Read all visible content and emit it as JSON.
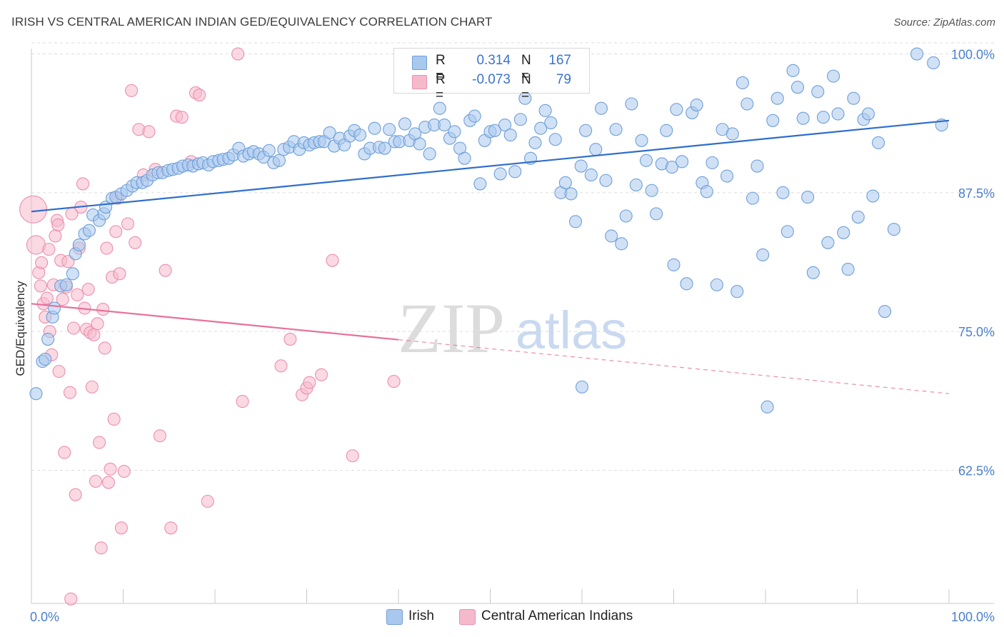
{
  "header": {
    "title": "IRISH VS CENTRAL AMERICAN INDIAN GED/EQUIVALENCY CORRELATION CHART",
    "source": "Source: ZipAtlas.com"
  },
  "watermark": {
    "zip": "ZIP",
    "atlas": "atlas"
  },
  "legend": {
    "rows": [
      {
        "r_label": "R =",
        "r_value": "0.314",
        "n_label": "N =",
        "n_value": "167"
      },
      {
        "r_label": "R =",
        "r_value": "-0.073",
        "n_label": "N =",
        "n_value": "79"
      }
    ]
  },
  "bottom_legend": {
    "irish": "Irish",
    "cai": "Central American Indians"
  },
  "colors": {
    "irish_fill": "#a9c8ee",
    "irish_stroke": "#6f9fd8",
    "irish_line": "#2f6ecb",
    "cai_fill": "#f5b9cc",
    "cai_stroke": "#ec8fae",
    "cai_line": "#e8709a",
    "tick_text": "#4a7fd0",
    "grid": "#dedede"
  },
  "chart_data": {
    "type": "scatter",
    "title": "IRISH VS CENTRAL AMERICAN INDIAN GED/EQUIVALENCY CORRELATION CHART",
    "ylabel": "GED/Equivalency",
    "xlabel": "",
    "xlim": [
      0,
      100
    ],
    "ylim": [
      50.5,
      101
    ],
    "x_tick_labels": [
      "0.0%",
      "100.0%"
    ],
    "y_ticks": [
      62.5,
      75.0,
      87.5,
      100.0
    ],
    "y_tick_labels": [
      "62.5%",
      "75.0%",
      "87.5%",
      "100.0%"
    ],
    "grid": true,
    "series": [
      {
        "name": "Irish",
        "trendline": [
          [
            0,
            85.8
          ],
          [
            100,
            94.0
          ]
        ],
        "trend_solid_to": 100,
        "points": [
          [
            0.5,
            69.4
          ],
          [
            1.2,
            72.3
          ],
          [
            1.5,
            72.5
          ],
          [
            1.8,
            74.3
          ],
          [
            2.3,
            76.3
          ],
          [
            2.5,
            77.1
          ],
          [
            3.2,
            79.1
          ],
          [
            3.8,
            79.2
          ],
          [
            4.5,
            80.2
          ],
          [
            4.8,
            82.0
          ],
          [
            5.2,
            82.8
          ],
          [
            5.8,
            83.8
          ],
          [
            6.3,
            84.1
          ],
          [
            6.7,
            85.5
          ],
          [
            7.4,
            85.0
          ],
          [
            7.9,
            85.6
          ],
          [
            8.1,
            86.2
          ],
          [
            8.8,
            87.0
          ],
          [
            9.2,
            87.1
          ],
          [
            9.8,
            87.4
          ],
          [
            10.4,
            87.7
          ],
          [
            11.0,
            88.1
          ],
          [
            11.5,
            88.4
          ],
          [
            12.1,
            88.4
          ],
          [
            12.6,
            88.6
          ],
          [
            13.2,
            89.1
          ],
          [
            13.8,
            89.3
          ],
          [
            14.3,
            89.3
          ],
          [
            14.9,
            89.5
          ],
          [
            15.4,
            89.6
          ],
          [
            16.0,
            89.7
          ],
          [
            16.5,
            89.9
          ],
          [
            17.1,
            90.0
          ],
          [
            17.6,
            89.9
          ],
          [
            18.2,
            90.1
          ],
          [
            18.7,
            90.2
          ],
          [
            19.3,
            90.0
          ],
          [
            19.8,
            90.3
          ],
          [
            20.4,
            90.4
          ],
          [
            20.9,
            90.5
          ],
          [
            21.5,
            90.6
          ],
          [
            22.0,
            90.9
          ],
          [
            22.6,
            91.5
          ],
          [
            23.1,
            90.8
          ],
          [
            23.7,
            91.0
          ],
          [
            24.2,
            91.2
          ],
          [
            24.8,
            91.0
          ],
          [
            25.3,
            90.7
          ],
          [
            25.9,
            91.3
          ],
          [
            26.4,
            90.2
          ],
          [
            27.0,
            90.4
          ],
          [
            27.5,
            91.4
          ],
          [
            28.1,
            91.6
          ],
          [
            28.6,
            92.1
          ],
          [
            29.2,
            91.4
          ],
          [
            29.7,
            92.0
          ],
          [
            30.3,
            91.8
          ],
          [
            30.8,
            92.0
          ],
          [
            31.4,
            92.1
          ],
          [
            31.9,
            92.1
          ],
          [
            32.5,
            92.9
          ],
          [
            33.0,
            91.7
          ],
          [
            33.6,
            92.4
          ],
          [
            34.1,
            91.8
          ],
          [
            34.7,
            92.6
          ],
          [
            35.2,
            93.1
          ],
          [
            35.8,
            92.7
          ],
          [
            36.3,
            91.0
          ],
          [
            36.9,
            91.5
          ],
          [
            37.4,
            93.3
          ],
          [
            37.9,
            91.6
          ],
          [
            38.5,
            91.5
          ],
          [
            39.0,
            93.2
          ],
          [
            39.6,
            92.1
          ],
          [
            40.1,
            92.1
          ],
          [
            40.7,
            93.7
          ],
          [
            41.2,
            92.2
          ],
          [
            41.8,
            92.8
          ],
          [
            42.3,
            91.9
          ],
          [
            42.9,
            93.4
          ],
          [
            43.4,
            91.0
          ],
          [
            43.9,
            93.6
          ],
          [
            44.5,
            95.1
          ],
          [
            45.0,
            93.6
          ],
          [
            45.6,
            92.4
          ],
          [
            46.1,
            93.0
          ],
          [
            46.7,
            91.5
          ],
          [
            47.2,
            90.6
          ],
          [
            47.8,
            94.0
          ],
          [
            48.3,
            94.4
          ],
          [
            48.9,
            88.3
          ],
          [
            49.4,
            92.2
          ],
          [
            50.0,
            93.0
          ],
          [
            50.5,
            93.1
          ],
          [
            51.1,
            89.2
          ],
          [
            51.6,
            93.6
          ],
          [
            52.2,
            92.7
          ],
          [
            52.7,
            89.4
          ],
          [
            53.3,
            94.1
          ],
          [
            53.8,
            96.0
          ],
          [
            54.4,
            90.6
          ],
          [
            54.9,
            92.0
          ],
          [
            55.5,
            93.3
          ],
          [
            56.0,
            94.9
          ],
          [
            56.6,
            93.8
          ],
          [
            57.1,
            92.3
          ],
          [
            57.7,
            87.5
          ],
          [
            58.2,
            88.4
          ],
          [
            58.8,
            87.4
          ],
          [
            59.3,
            84.9
          ],
          [
            59.9,
            89.9
          ],
          [
            60.4,
            93.1
          ],
          [
            61.0,
            89.1
          ],
          [
            61.5,
            91.4
          ],
          [
            62.1,
            95.1
          ],
          [
            62.6,
            88.6
          ],
          [
            63.2,
            83.6
          ],
          [
            63.7,
            93.2
          ],
          [
            64.3,
            82.9
          ],
          [
            64.8,
            85.4
          ],
          [
            65.4,
            95.5
          ],
          [
            65.9,
            88.2
          ],
          [
            66.5,
            92.2
          ],
          [
            67.0,
            90.4
          ],
          [
            67.6,
            87.7
          ],
          [
            68.1,
            85.6
          ],
          [
            68.7,
            90.1
          ],
          [
            69.2,
            93.1
          ],
          [
            69.8,
            89.8
          ],
          [
            70.3,
            95.0
          ],
          [
            70.9,
            90.3
          ],
          [
            71.4,
            79.3
          ],
          [
            72.0,
            94.7
          ],
          [
            72.5,
            95.4
          ],
          [
            73.1,
            88.4
          ],
          [
            73.6,
            87.6
          ],
          [
            74.2,
            90.2
          ],
          [
            74.7,
            79.2
          ],
          [
            75.3,
            93.2
          ],
          [
            75.8,
            89.0
          ],
          [
            76.4,
            92.8
          ],
          [
            76.9,
            78.6
          ],
          [
            77.5,
            97.4
          ],
          [
            78.0,
            95.5
          ],
          [
            78.6,
            87.0
          ],
          [
            79.1,
            89.9
          ],
          [
            79.7,
            81.9
          ],
          [
            80.2,
            68.2
          ],
          [
            80.8,
            94.0
          ],
          [
            81.3,
            96.0
          ],
          [
            81.9,
            87.5
          ],
          [
            82.4,
            84.0
          ],
          [
            83.0,
            98.5
          ],
          [
            83.5,
            97.0
          ],
          [
            84.1,
            94.2
          ],
          [
            84.6,
            87.1
          ],
          [
            85.2,
            80.3
          ],
          [
            85.7,
            96.6
          ],
          [
            86.3,
            94.3
          ],
          [
            86.8,
            83.0
          ],
          [
            87.4,
            98.0
          ],
          [
            87.9,
            94.6
          ],
          [
            88.5,
            83.9
          ],
          [
            89.0,
            80.6
          ],
          [
            89.6,
            96.0
          ],
          [
            90.1,
            85.3
          ],
          [
            90.7,
            94.1
          ],
          [
            91.2,
            94.6
          ],
          [
            91.7,
            87.2
          ],
          [
            92.3,
            92.0
          ],
          [
            93.0,
            76.8
          ],
          [
            94.0,
            84.2
          ],
          [
            96.5,
            100.0
          ],
          [
            98.3,
            99.2
          ],
          [
            99.2,
            93.6
          ],
          [
            60.0,
            70.0
          ],
          [
            70.0,
            81.0
          ]
        ]
      },
      {
        "name": "Central American Indians",
        "trendline": [
          [
            0,
            77.5
          ],
          [
            100,
            69.4
          ]
        ],
        "trend_solid_to": 40,
        "points": [
          [
            0.2,
            86.0
          ],
          [
            0.5,
            82.8
          ],
          [
            0.8,
            80.3
          ],
          [
            1.0,
            79.1
          ],
          [
            1.1,
            81.2
          ],
          [
            1.3,
            77.5
          ],
          [
            1.5,
            76.3
          ],
          [
            1.7,
            78.0
          ],
          [
            2.0,
            75.0
          ],
          [
            2.2,
            72.9
          ],
          [
            2.4,
            79.2
          ],
          [
            2.6,
            83.6
          ],
          [
            2.8,
            85.0
          ],
          [
            3.0,
            71.4
          ],
          [
            3.2,
            81.4
          ],
          [
            3.4,
            77.9
          ],
          [
            3.6,
            64.1
          ],
          [
            3.8,
            79.0
          ],
          [
            4.0,
            81.3
          ],
          [
            4.2,
            69.5
          ],
          [
            4.4,
            85.6
          ],
          [
            4.6,
            75.3
          ],
          [
            4.8,
            60.3
          ],
          [
            5.0,
            78.3
          ],
          [
            5.2,
            82.5
          ],
          [
            5.4,
            86.2
          ],
          [
            5.6,
            88.3
          ],
          [
            5.8,
            77.1
          ],
          [
            6.0,
            75.2
          ],
          [
            6.2,
            78.8
          ],
          [
            6.4,
            74.9
          ],
          [
            6.6,
            70.0
          ],
          [
            6.8,
            74.7
          ],
          [
            7.0,
            61.5
          ],
          [
            7.2,
            75.7
          ],
          [
            7.4,
            65.0
          ],
          [
            7.6,
            55.5
          ],
          [
            7.8,
            77.0
          ],
          [
            8.0,
            73.5
          ],
          [
            8.2,
            82.5
          ],
          [
            8.4,
            61.4
          ],
          [
            8.6,
            62.6
          ],
          [
            8.8,
            79.9
          ],
          [
            9.0,
            67.1
          ],
          [
            9.2,
            84.0
          ],
          [
            9.4,
            87.0
          ],
          [
            9.6,
            80.2
          ],
          [
            9.8,
            57.3
          ],
          [
            10.1,
            62.4
          ],
          [
            10.5,
            84.7
          ],
          [
            10.9,
            96.7
          ],
          [
            11.3,
            83.0
          ],
          [
            11.7,
            93.2
          ],
          [
            12.2,
            89.1
          ],
          [
            12.8,
            93.0
          ],
          [
            13.5,
            89.6
          ],
          [
            14.0,
            65.6
          ],
          [
            14.6,
            80.5
          ],
          [
            15.2,
            57.3
          ],
          [
            15.8,
            94.4
          ],
          [
            16.4,
            94.3
          ],
          [
            17.4,
            90.3
          ],
          [
            17.9,
            96.5
          ],
          [
            18.3,
            96.3
          ],
          [
            19.2,
            59.7
          ],
          [
            22.5,
            100.0
          ],
          [
            23.0,
            68.7
          ],
          [
            27.2,
            71.9
          ],
          [
            28.2,
            74.3
          ],
          [
            29.5,
            69.3
          ],
          [
            30.0,
            69.9
          ],
          [
            30.3,
            70.4
          ],
          [
            31.6,
            71.1
          ],
          [
            32.8,
            81.4
          ],
          [
            35.0,
            63.8
          ],
          [
            39.5,
            70.5
          ],
          [
            4.3,
            50.9
          ],
          [
            2.9,
            84.6
          ],
          [
            1.9,
            82.4
          ]
        ]
      }
    ]
  }
}
